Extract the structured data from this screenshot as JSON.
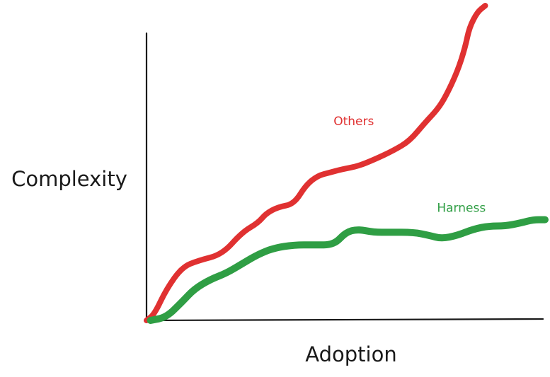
{
  "chart_data": {
    "type": "line",
    "title": "",
    "xlabel": "Adoption",
    "ylabel": "Complexity",
    "xlim": [
      0,
      100
    ],
    "ylim": [
      0,
      100
    ],
    "grid": false,
    "legend": "inline-labels",
    "series": [
      {
        "name": "Others",
        "color": "#e03131",
        "x": [
          0,
          2,
          5,
          9,
          13,
          19,
          24,
          28,
          30,
          33,
          37,
          40,
          43,
          46,
          49,
          53,
          57,
          62,
          66,
          70,
          73,
          75,
          78,
          80,
          81,
          83,
          85
        ],
        "y": [
          0,
          2,
          10,
          17,
          19,
          21,
          28,
          31,
          34,
          36,
          37,
          43,
          46,
          47,
          48,
          49,
          51,
          54,
          57,
          63,
          67,
          71,
          79,
          87,
          93,
          98,
          100
        ]
      },
      {
        "name": "Harness",
        "color": "#2f9e44",
        "x": [
          1,
          5,
          9,
          12,
          16,
          20,
          24,
          28,
          32,
          37,
          42,
          47,
          50,
          53,
          57,
          61,
          67,
          71,
          74,
          78,
          82,
          86,
          90,
          94,
          97,
          100
        ],
        "y": [
          0,
          1,
          6,
          10,
          13,
          15,
          18,
          21,
          23,
          24,
          24,
          24,
          28,
          29,
          28,
          28,
          28,
          27,
          26,
          27,
          29,
          30,
          30,
          31,
          32,
          32
        ]
      }
    ]
  }
}
